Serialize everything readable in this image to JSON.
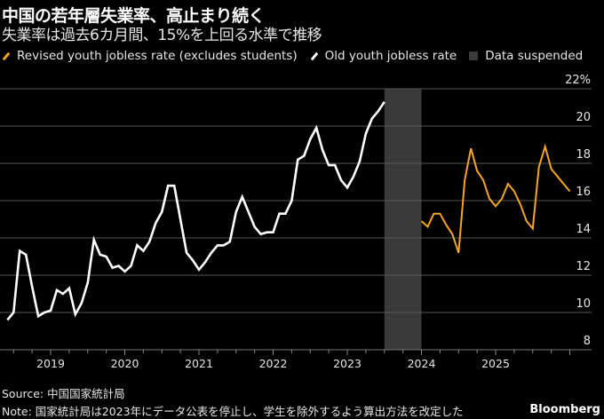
{
  "title": "中国の若年層失業率、高止まり続く",
  "subtitle": "失業率は過去6カ月間、15%を上回る水準で推移",
  "legend": [
    {
      "label": "Revised youth jobless rate (excludes students)",
      "color": "#f5a623",
      "kind": "line"
    },
    {
      "label": "Old youth jobless rate",
      "color": "#ffffff",
      "kind": "line"
    },
    {
      "label": "Data suspended",
      "color": "#3a3a3a",
      "kind": "box"
    }
  ],
  "footer": {
    "source": "Source: 中国国家統計局",
    "note": "Note: 国家統計局は2023年にデータ公表を停止し、学生を除外するよう算出方法を改定した",
    "brand": "Bloomberg"
  },
  "chart_data": {
    "type": "line",
    "title": "中国の若年層失業率、高止まり続く",
    "xlabel": "",
    "ylabel": "",
    "ylim": [
      8,
      22
    ],
    "yticks": [
      8,
      10,
      12,
      14,
      16,
      18,
      20,
      22
    ],
    "ytick_labels": [
      "8",
      "10",
      "12",
      "14",
      "16",
      "18",
      "20",
      "22%"
    ],
    "xticks": [
      "2019",
      "2020",
      "2021",
      "2022",
      "2023",
      "2024",
      "2025"
    ],
    "grid": true,
    "legend_position": "top-left",
    "y_axis_side": "right",
    "shaded_region": {
      "label": "Data suspended",
      "from": "2023-06",
      "to": "2023-12",
      "color": "#3a3a3a"
    },
    "series": [
      {
        "name": "Old youth jobless rate",
        "color": "#ffffff",
        "start": "2018-05",
        "values": [
          9.6,
          10.0,
          13.3,
          13.1,
          11.4,
          9.8,
          10.0,
          10.1,
          11.2,
          11.0,
          11.3,
          9.9,
          10.5,
          11.6,
          13.9,
          13.1,
          13.0,
          12.4,
          12.5,
          12.2,
          12.5,
          13.6,
          13.3,
          13.8,
          14.8,
          15.4,
          16.8,
          16.8,
          15.0,
          13.2,
          12.8,
          12.3,
          12.7,
          13.2,
          13.6,
          13.6,
          13.8,
          15.4,
          16.2,
          15.4,
          14.6,
          14.2,
          14.3,
          14.3,
          15.3,
          15.3,
          16.0,
          18.2,
          18.4,
          19.3,
          19.9,
          18.7,
          17.9,
          17.9,
          17.1,
          16.7,
          17.3,
          18.1,
          19.6,
          20.4,
          20.8,
          21.3
        ]
      },
      {
        "name": "Revised youth jobless rate (excludes students)",
        "color": "#f5a623",
        "start": "2023-12",
        "values": [
          14.9,
          14.6,
          15.3,
          15.3,
          14.7,
          14.2,
          13.2,
          17.1,
          18.8,
          17.6,
          17.1,
          16.1,
          15.7,
          16.1,
          16.9,
          16.5,
          15.8,
          14.9,
          14.5,
          17.8,
          18.9,
          17.7,
          17.3,
          16.9,
          16.5
        ]
      }
    ]
  }
}
